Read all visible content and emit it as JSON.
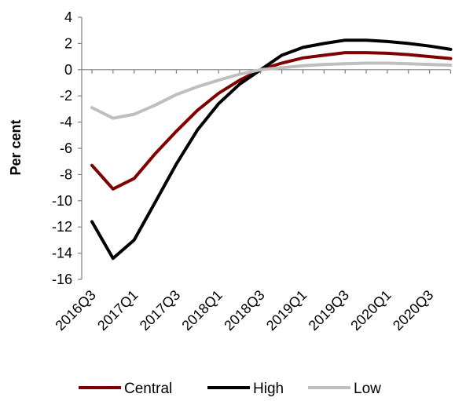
{
  "chart_data": {
    "type": "line",
    "title": "",
    "xlabel": "",
    "ylabel": "Per cent",
    "ylim": [
      -16,
      4
    ],
    "yticks": [
      4,
      2,
      0,
      -2,
      -4,
      -6,
      -8,
      -10,
      -12,
      -14,
      -16
    ],
    "x": [
      "2016Q3",
      "2016Q4",
      "2017Q1",
      "2017Q2",
      "2017Q3",
      "2017Q4",
      "2018Q1",
      "2018Q2",
      "2018Q3",
      "2018Q4",
      "2019Q1",
      "2019Q2",
      "2019Q3",
      "2019Q4",
      "2020Q1",
      "2020Q2",
      "2020Q3",
      "2020Q4"
    ],
    "xtick_labels": [
      "2016Q3",
      "2017Q1",
      "2017Q3",
      "2018Q1",
      "2018Q3",
      "2019Q1",
      "2019Q3",
      "2020Q1",
      "2020Q3"
    ],
    "grid": false,
    "legend_position": "bottom",
    "series": [
      {
        "name": "Central",
        "color": "#7f0000",
        "values": [
          -7.3,
          -9.1,
          -8.3,
          -6.4,
          -4.7,
          -3.1,
          -1.8,
          -0.8,
          0.0,
          0.5,
          0.9,
          1.1,
          1.3,
          1.3,
          1.25,
          1.15,
          1.0,
          0.85
        ]
      },
      {
        "name": "High",
        "color": "#000000",
        "values": [
          -11.6,
          -14.4,
          -13.0,
          -10.1,
          -7.2,
          -4.6,
          -2.6,
          -1.1,
          0.0,
          1.1,
          1.7,
          2.0,
          2.25,
          2.25,
          2.15,
          2.0,
          1.8,
          1.55
        ]
      },
      {
        "name": "Low",
        "color": "#bfbfbf",
        "values": [
          -2.9,
          -3.7,
          -3.4,
          -2.7,
          -1.9,
          -1.3,
          -0.8,
          -0.35,
          0.0,
          0.15,
          0.3,
          0.4,
          0.45,
          0.5,
          0.5,
          0.45,
          0.4,
          0.35
        ]
      }
    ]
  }
}
